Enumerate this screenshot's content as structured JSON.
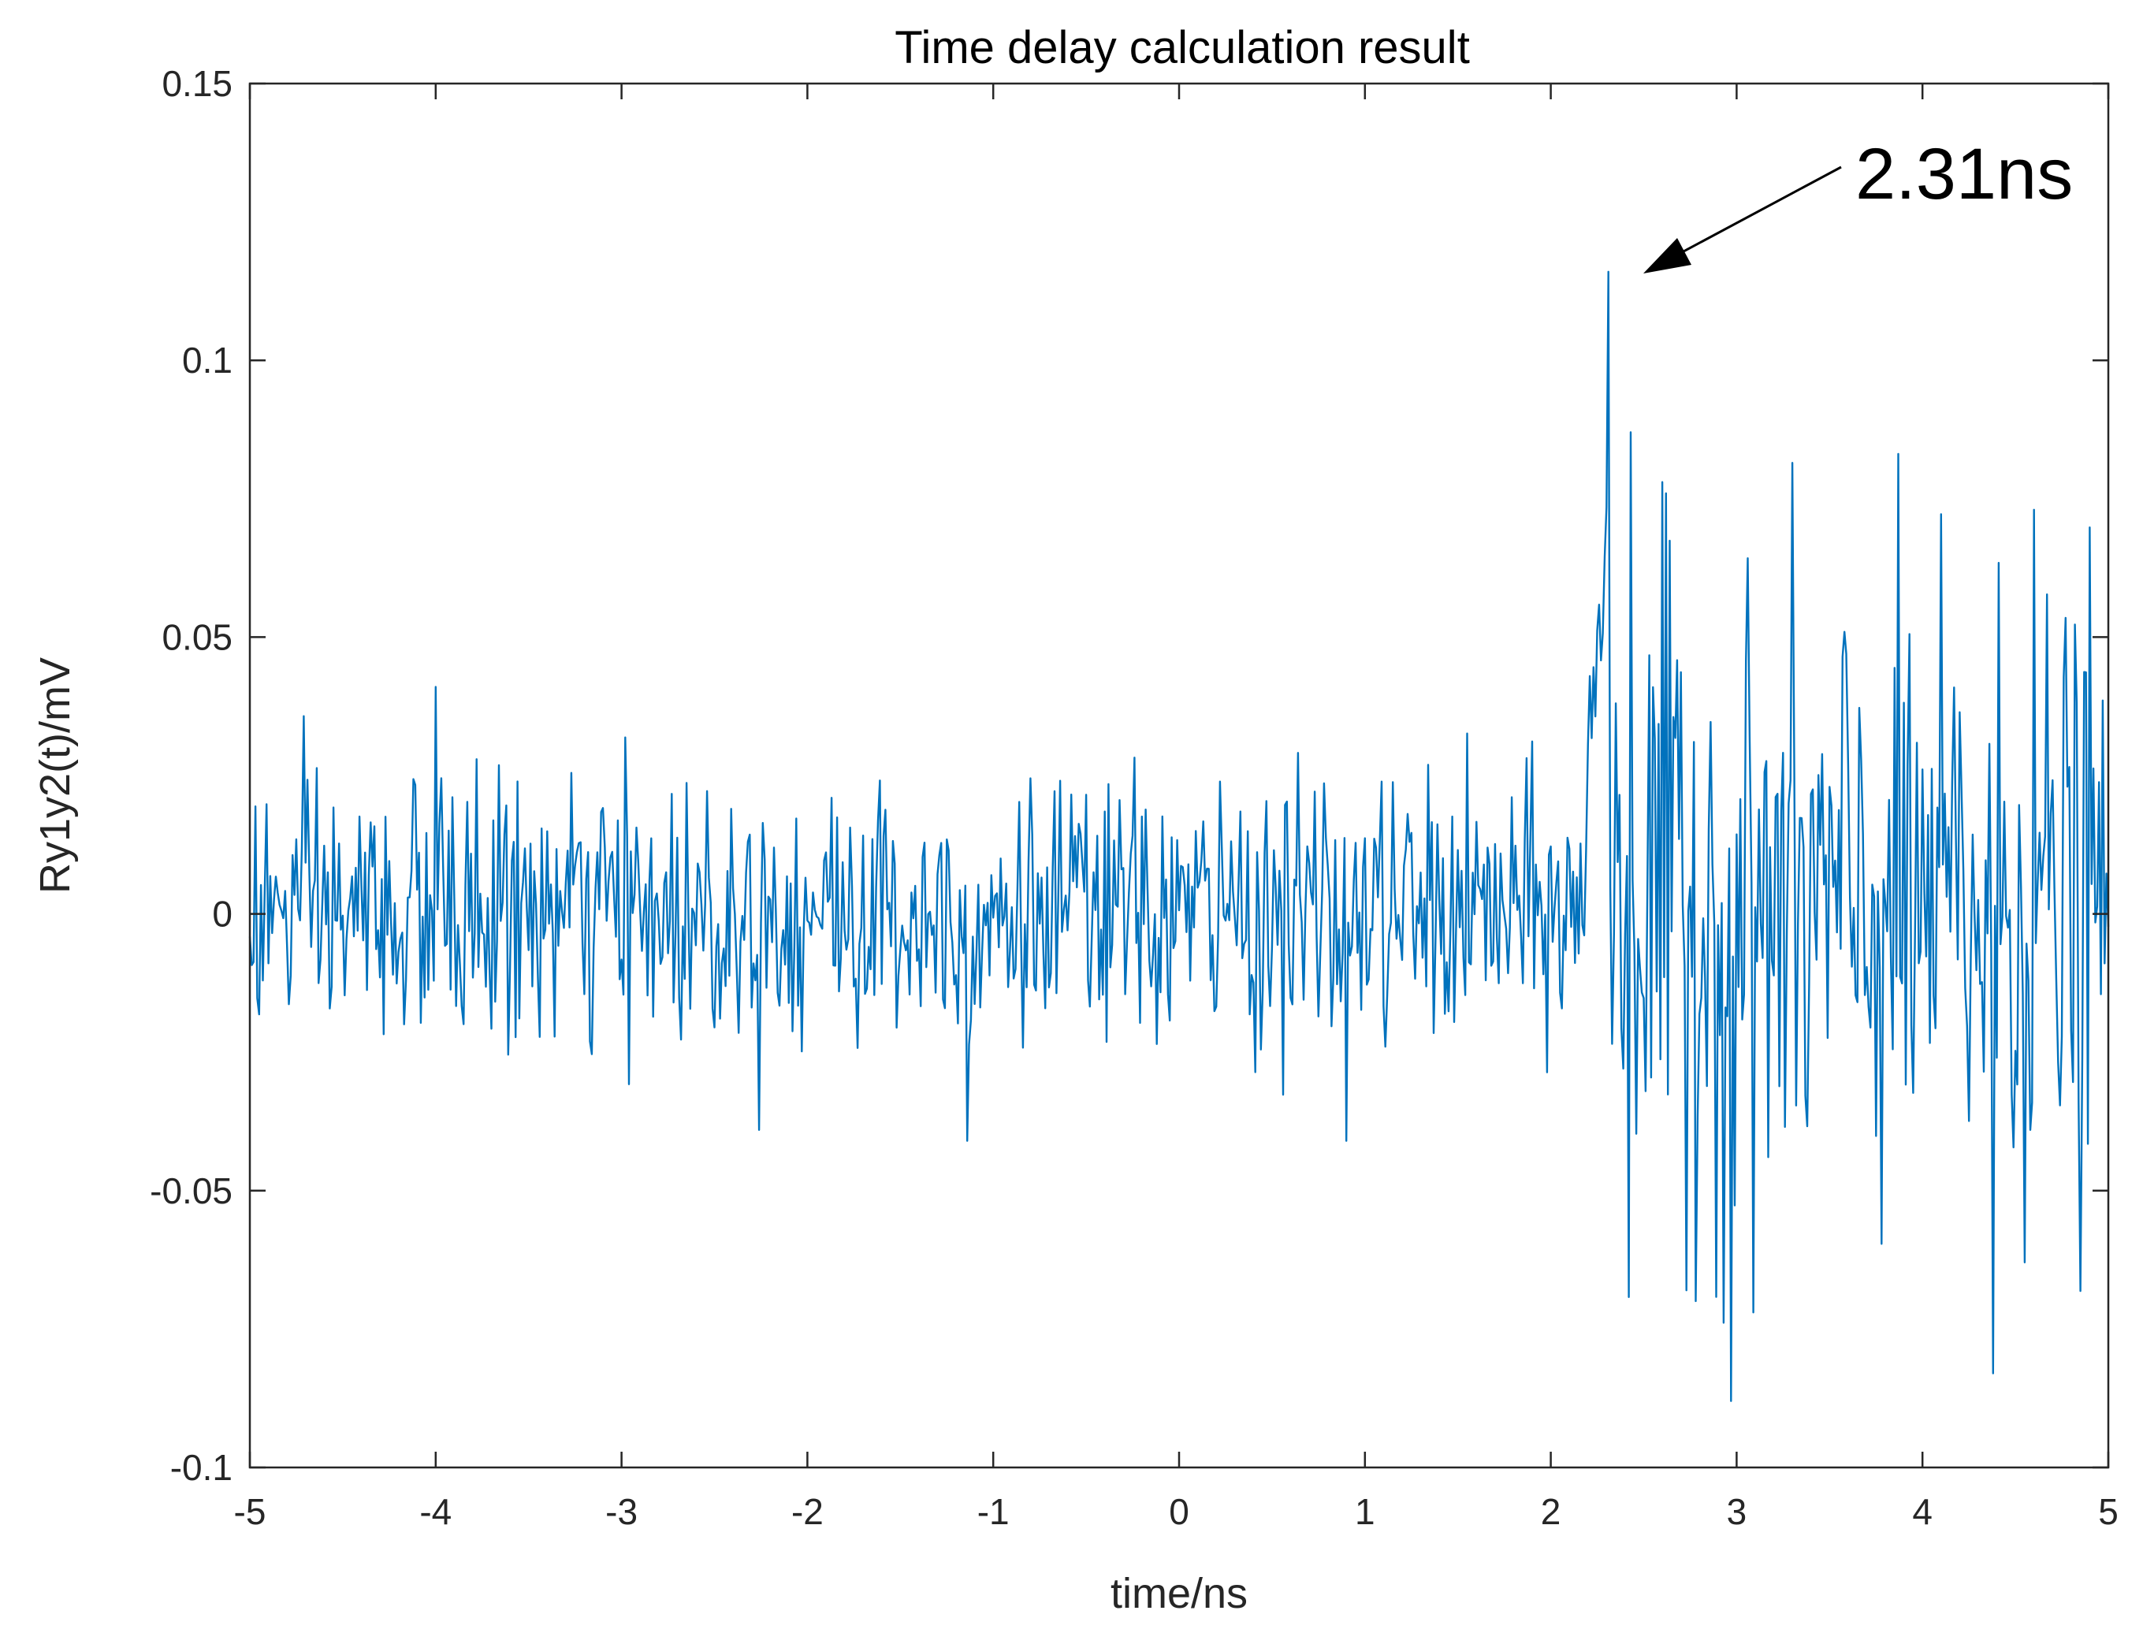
{
  "chart_data": {
    "type": "line",
    "title": "Time delay calculation result",
    "xlabel": "time/ns",
    "ylabel": "Ry1y2(t)/mV",
    "xlim": [
      -5,
      5
    ],
    "ylim": [
      -0.1,
      0.15
    ],
    "xticks": [
      -5,
      -4,
      -3,
      -2,
      -1,
      0,
      1,
      2,
      3,
      4,
      5
    ],
    "xtick_labels": [
      "-5",
      "-4",
      "-3",
      "-2",
      "-1",
      "0",
      "1",
      "2",
      "3",
      "4",
      "5"
    ],
    "yticks": [
      -0.1,
      -0.05,
      0,
      0.05,
      0.1,
      0.15
    ],
    "ytick_labels": [
      "-0.1",
      "-0.05",
      "0",
      "0.05",
      "0.1",
      "0.15"
    ],
    "grid": false,
    "series": [
      {
        "name": "Ry1y2(t)",
        "color": "#0072BD",
        "x_start": -5,
        "x_end": 5,
        "samples": 1000,
        "noise_std_before_peak": 0.012,
        "noise_std_after_peak": 0.028,
        "key_points": [
          {
            "x": -4.0,
            "y": 0.041
          },
          {
            "x": -1.14,
            "y": -0.041
          },
          {
            "x": 0.9,
            "y": -0.041
          },
          {
            "x": 2.31,
            "y": 0.116
          },
          {
            "x": 2.43,
            "y": 0.087
          },
          {
            "x": 2.6,
            "y": 0.078
          },
          {
            "x": 2.73,
            "y": -0.068
          },
          {
            "x": 2.97,
            "y": -0.088
          },
          {
            "x": 4.38,
            "y": -0.083
          },
          {
            "x": 4.6,
            "y": 0.073
          }
        ]
      }
    ],
    "annotation": {
      "text": "2.31ns",
      "x": 2.31,
      "y": 0.116
    }
  }
}
